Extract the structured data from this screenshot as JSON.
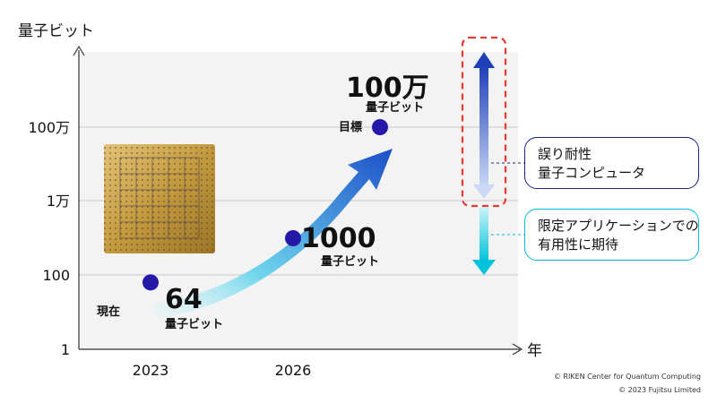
{
  "chart_data": {
    "type": "scatter",
    "ylabel": "量子ビット",
    "xlabel": "年",
    "y_scale": "log",
    "y_ticks": [
      "1",
      "100",
      "1万",
      "100万"
    ],
    "y_tick_values": [
      1,
      100,
      10000,
      1000000
    ],
    "x_ticks": [
      "2023",
      "2026"
    ],
    "grid": true,
    "points": [
      {
        "year": 2023,
        "value": 64,
        "value_label": "64",
        "unit_label": "量子ビット",
        "tag": "現在"
      },
      {
        "year": 2026,
        "value": 1000,
        "value_label": "1000",
        "unit_label": "量子ビット",
        "tag": ""
      },
      {
        "year": null,
        "value": 1000000,
        "value_label": "100万",
        "unit_label": "量子ビット",
        "tag": "目標"
      }
    ],
    "ranges": [
      {
        "label": "誤り耐性\n量子コンピュータ",
        "color": "#1a237e"
      },
      {
        "label": "限定アプリケーションでの\n有用性に期待",
        "color": "#00bcd4"
      }
    ]
  },
  "callouts": {
    "fault_tolerant": {
      "line1": "誤り耐性",
      "line2": "量子コンピュータ"
    },
    "limited_use": {
      "line1": "限定アプリケーションでの",
      "line2": "有用性に期待"
    }
  },
  "copyright": {
    "line1": "© RIKEN Center for Quantum Computing",
    "line2": "© 2023 Fujitsu Limited"
  },
  "colors": {
    "point": "#2418a8",
    "arrow_dark": "#1552c8",
    "arrow_light": "#b8f0f5",
    "fault_tolerant": "#1a237e",
    "limited_use": "#00bcd4",
    "dashed_box": "#e53935",
    "chip_gold": "#c9a24a"
  }
}
